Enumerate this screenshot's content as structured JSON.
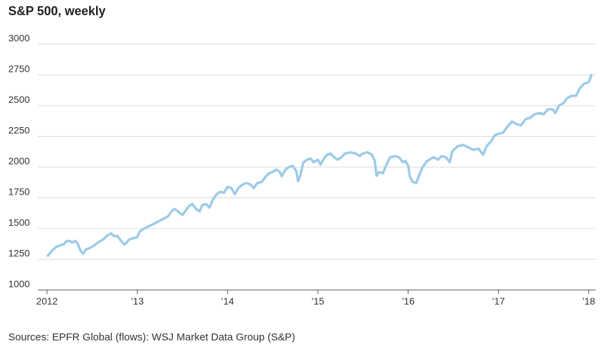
{
  "title": "S&P 500, weekly",
  "source": "Sources: EPFR Global (flows): WSJ Market Data Group (S&P)",
  "colors": {
    "line": "#9ccbe8",
    "grid": "#d9d9d9",
    "axis": "#555555"
  },
  "chart_data": {
    "type": "line",
    "title": "S&P 500, weekly",
    "xlabel": "",
    "ylabel": "",
    "ylim": [
      1000,
      3000
    ],
    "xlim": [
      2012.0,
      2018.05
    ],
    "yticks": [
      1000,
      1250,
      1500,
      1750,
      2000,
      2250,
      2500,
      2750,
      3000
    ],
    "xticks": [
      {
        "value": 2012,
        "label": "2012"
      },
      {
        "value": 2013,
        "label": "’13"
      },
      {
        "value": 2014,
        "label": "’14"
      },
      {
        "value": 2015,
        "label": "’15"
      },
      {
        "value": 2016,
        "label": "’16"
      },
      {
        "value": 2017,
        "label": "’17"
      },
      {
        "value": 2018,
        "label": "’18"
      }
    ],
    "grid": true,
    "series": [
      {
        "values": [
          [
            2012.01,
            1280
          ],
          [
            2012.05,
            1315
          ],
          [
            2012.1,
            1350
          ],
          [
            2012.15,
            1365
          ],
          [
            2012.19,
            1375
          ],
          [
            2012.21,
            1395
          ],
          [
            2012.25,
            1400
          ],
          [
            2012.28,
            1385
          ],
          [
            2012.31,
            1400
          ],
          [
            2012.34,
            1380
          ],
          [
            2012.36,
            1340
          ],
          [
            2012.38,
            1310
          ],
          [
            2012.4,
            1295
          ],
          [
            2012.43,
            1330
          ],
          [
            2012.47,
            1340
          ],
          [
            2012.52,
            1360
          ],
          [
            2012.57,
            1390
          ],
          [
            2012.62,
            1410
          ],
          [
            2012.67,
            1445
          ],
          [
            2012.71,
            1460
          ],
          [
            2012.74,
            1440
          ],
          [
            2012.78,
            1440
          ],
          [
            2012.82,
            1400
          ],
          [
            2012.86,
            1370
          ],
          [
            2012.88,
            1385
          ],
          [
            2012.91,
            1410
          ],
          [
            2012.95,
            1420
          ],
          [
            2013.0,
            1430
          ],
          [
            2013.03,
            1480
          ],
          [
            2013.08,
            1500
          ],
          [
            2013.13,
            1520
          ],
          [
            2013.19,
            1540
          ],
          [
            2013.24,
            1560
          ],
          [
            2013.29,
            1580
          ],
          [
            2013.34,
            1600
          ],
          [
            2013.38,
            1640
          ],
          [
            2013.41,
            1660
          ],
          [
            2013.45,
            1640
          ],
          [
            2013.5,
            1610
          ],
          [
            2013.53,
            1640
          ],
          [
            2013.57,
            1680
          ],
          [
            2013.61,
            1700
          ],
          [
            2013.65,
            1660
          ],
          [
            2013.69,
            1640
          ],
          [
            2013.72,
            1690
          ],
          [
            2013.76,
            1700
          ],
          [
            2013.8,
            1670
          ],
          [
            2013.84,
            1740
          ],
          [
            2013.88,
            1780
          ],
          [
            2013.92,
            1800
          ],
          [
            2013.96,
            1790
          ],
          [
            2014.0,
            1840
          ],
          [
            2014.04,
            1830
          ],
          [
            2014.08,
            1780
          ],
          [
            2014.12,
            1830
          ],
          [
            2014.17,
            1860
          ],
          [
            2014.21,
            1870
          ],
          [
            2014.25,
            1860
          ],
          [
            2014.29,
            1830
          ],
          [
            2014.33,
            1870
          ],
          [
            2014.38,
            1880
          ],
          [
            2014.42,
            1920
          ],
          [
            2014.46,
            1950
          ],
          [
            2014.5,
            1960
          ],
          [
            2014.54,
            1980
          ],
          [
            2014.58,
            1960
          ],
          [
            2014.6,
            1925
          ],
          [
            2014.64,
            1980
          ],
          [
            2014.68,
            2000
          ],
          [
            2014.72,
            2010
          ],
          [
            2014.76,
            1970
          ],
          [
            2014.78,
            1885
          ],
          [
            2014.8,
            1920
          ],
          [
            2014.84,
            2040
          ],
          [
            2014.88,
            2060
          ],
          [
            2014.92,
            2070
          ],
          [
            2014.95,
            2040
          ],
          [
            2015.0,
            2060
          ],
          [
            2015.03,
            2020
          ],
          [
            2015.06,
            2060
          ],
          [
            2015.1,
            2100
          ],
          [
            2015.14,
            2110
          ],
          [
            2015.18,
            2080
          ],
          [
            2015.22,
            2060
          ],
          [
            2015.26,
            2080
          ],
          [
            2015.3,
            2110
          ],
          [
            2015.36,
            2120
          ],
          [
            2015.42,
            2110
          ],
          [
            2015.46,
            2090
          ],
          [
            2015.5,
            2110
          ],
          [
            2015.55,
            2120
          ],
          [
            2015.6,
            2100
          ],
          [
            2015.63,
            2050
          ],
          [
            2015.65,
            1930
          ],
          [
            2015.68,
            1960
          ],
          [
            2015.72,
            1950
          ],
          [
            2015.76,
            2020
          ],
          [
            2015.8,
            2080
          ],
          [
            2015.86,
            2090
          ],
          [
            2015.9,
            2080
          ],
          [
            2015.94,
            2040
          ],
          [
            2015.97,
            2050
          ],
          [
            2016.0,
            2010
          ],
          [
            2016.02,
            1920
          ],
          [
            2016.05,
            1880
          ],
          [
            2016.09,
            1870
          ],
          [
            2016.12,
            1930
          ],
          [
            2016.16,
            2000
          ],
          [
            2016.21,
            2050
          ],
          [
            2016.28,
            2080
          ],
          [
            2016.33,
            2060
          ],
          [
            2016.37,
            2090
          ],
          [
            2016.42,
            2080
          ],
          [
            2016.46,
            2040
          ],
          [
            2016.49,
            2130
          ],
          [
            2016.55,
            2170
          ],
          [
            2016.61,
            2180
          ],
          [
            2016.67,
            2160
          ],
          [
            2016.72,
            2140
          ],
          [
            2016.78,
            2150
          ],
          [
            2016.83,
            2100
          ],
          [
            2016.87,
            2170
          ],
          [
            2016.92,
            2210
          ],
          [
            2016.96,
            2260
          ],
          [
            2017.0,
            2270
          ],
          [
            2017.05,
            2280
          ],
          [
            2017.1,
            2330
          ],
          [
            2017.15,
            2370
          ],
          [
            2017.2,
            2350
          ],
          [
            2017.25,
            2340
          ],
          [
            2017.3,
            2390
          ],
          [
            2017.35,
            2400
          ],
          [
            2017.4,
            2430
          ],
          [
            2017.45,
            2440
          ],
          [
            2017.5,
            2430
          ],
          [
            2017.55,
            2470
          ],
          [
            2017.6,
            2470
          ],
          [
            2017.63,
            2440
          ],
          [
            2017.67,
            2500
          ],
          [
            2017.72,
            2520
          ],
          [
            2017.76,
            2560
          ],
          [
            2017.81,
            2580
          ],
          [
            2017.86,
            2580
          ],
          [
            2017.9,
            2640
          ],
          [
            2017.95,
            2680
          ],
          [
            2018.0,
            2690
          ],
          [
            2018.03,
            2750
          ]
        ]
      }
    ]
  }
}
